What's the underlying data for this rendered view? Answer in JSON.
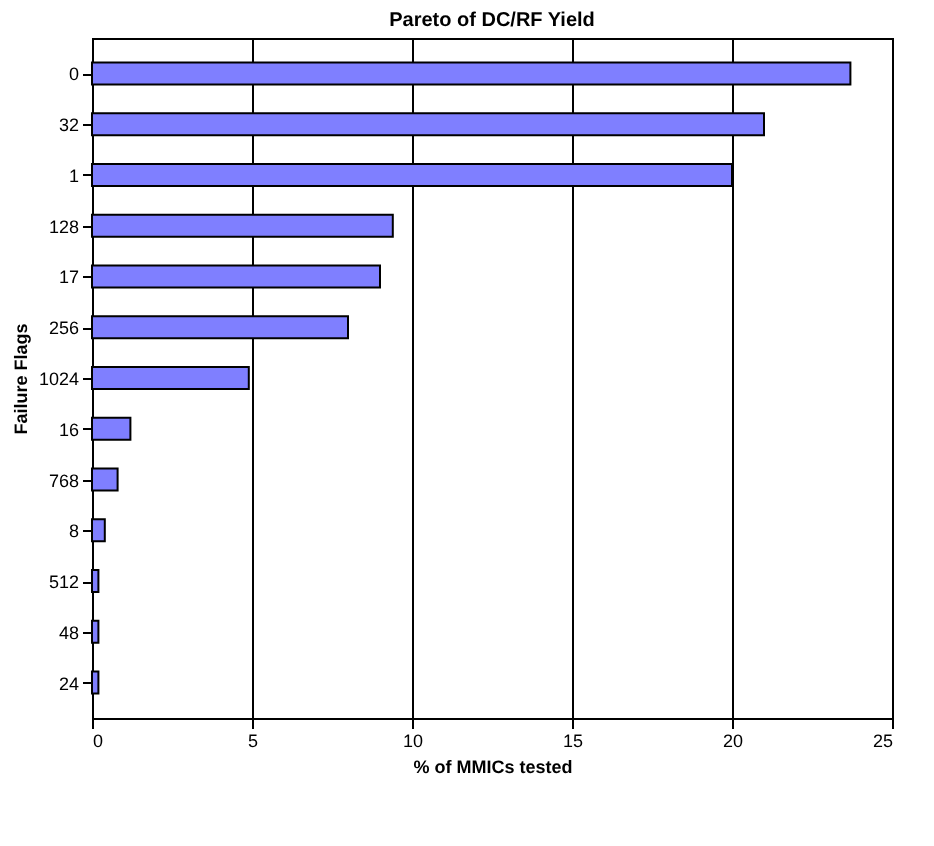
{
  "chart_data": {
    "type": "bar",
    "orientation": "horizontal",
    "title": "Pareto of DC/RF Yield",
    "xlabel": "% of MMICs tested",
    "ylabel": "Failure Flags",
    "categories": [
      "0",
      "32",
      "1",
      "128",
      "17",
      "256",
      "1024",
      "16",
      "768",
      "8",
      "512",
      "48",
      "24"
    ],
    "values": [
      23.7,
      21.0,
      20.0,
      9.4,
      9.0,
      8.0,
      4.9,
      1.2,
      0.8,
      0.4,
      0.2,
      0.2,
      0.2
    ],
    "color": "#7f7fff",
    "xlim": [
      0,
      25
    ],
    "xticks": [
      0,
      5,
      10,
      15,
      20,
      25
    ],
    "grid": "x"
  }
}
